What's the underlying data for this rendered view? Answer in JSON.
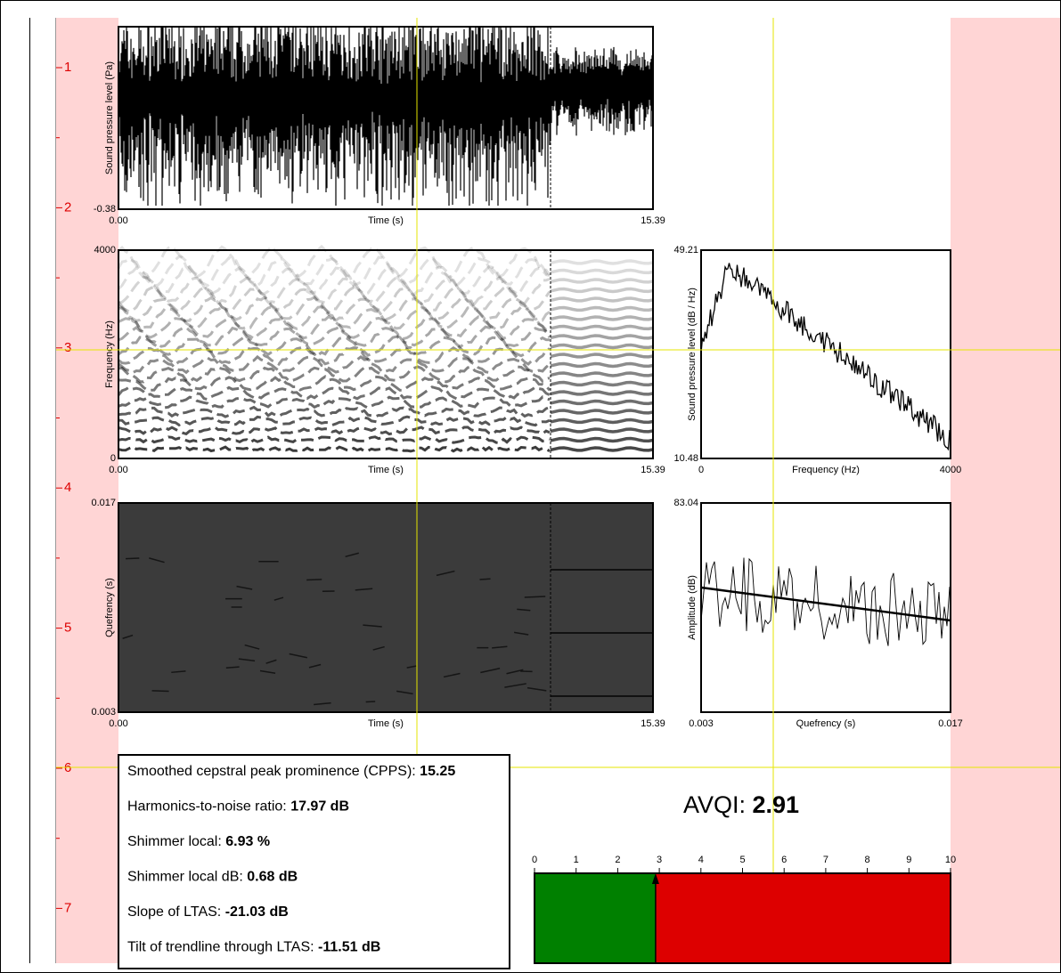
{
  "ruler": {
    "labels": [
      "1",
      "2",
      "3",
      "4",
      "5",
      "6",
      "7"
    ]
  },
  "panels": [
    {
      "y_label": "Sound pressure level (Pa)",
      "y_bottom": "-0.38",
      "x_left": "0.00",
      "x_label": "Time (s)",
      "x_right": "15.39"
    },
    {
      "y_label": "Frequency (Hz)",
      "y_top": "4000",
      "y_bottom": "0",
      "x_left": "0.00",
      "x_label": "Time (s)",
      "x_right": "15.39"
    },
    {
      "y_label": "Sound pressure level (dB / Hz)",
      "y_top": "49.21",
      "y_bottom": "10.48",
      "x_left": "0",
      "x_label": "Frequency (Hz)",
      "x_right": "4000"
    },
    {
      "y_label": "Quefrency (s)",
      "y_top": "0.017",
      "y_bottom": "0.003",
      "x_left": "0.00",
      "x_label": "Time (s)",
      "x_right": "15.39"
    },
    {
      "y_label": "Amplitude (dB)",
      "y_top": "83.04",
      "x_left": "0.003",
      "x_label": "Quefrency (s)",
      "x_right": "0.017"
    }
  ],
  "measures": [
    {
      "label": "Smoothed cepstral peak prominence (CPPS):",
      "value": "15.25"
    },
    {
      "label": "Harmonics-to-noise ratio:",
      "value": "17.97 dB"
    },
    {
      "label": "Shimmer local:",
      "value": "6.93 %"
    },
    {
      "label": "Shimmer local dB:",
      "value": "0.68 dB"
    },
    {
      "label": "Slope of LTAS:",
      "value": "-21.03 dB"
    },
    {
      "label": "Tilt of trendline through LTAS:",
      "value": "-11.51 dB"
    }
  ],
  "avqi": {
    "label": "AVQI:",
    "value": 2.91,
    "xlim": [
      0,
      10
    ],
    "xticks": [
      0,
      1,
      2,
      3,
      4,
      5,
      6,
      7,
      8,
      9,
      10
    ]
  }
}
